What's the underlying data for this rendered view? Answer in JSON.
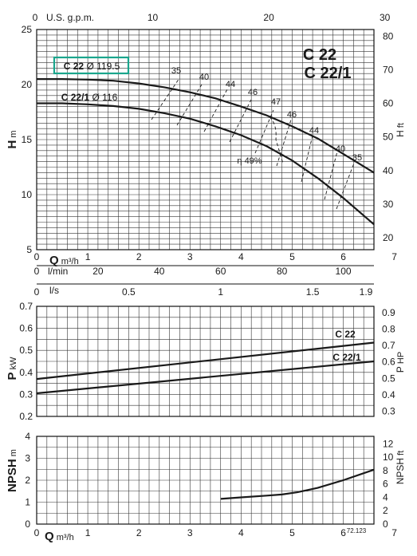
{
  "chart_data": [
    {
      "type": "line",
      "panel": "head",
      "model_title_1": "C 22",
      "model_title_2": "C 22/1",
      "ylabel": "H",
      "ylabel_unit": "m",
      "ylabel_right": "H",
      "ylabel_right_unit": "ft",
      "ylim": [
        5,
        25
      ],
      "xlim": [
        0,
        6.6
      ],
      "x_axis_label_q": "Q",
      "x_axis_label_q_unit": "m³/h",
      "x_axis_top_label": "U.S. g.p.m.",
      "x_axis_lmin_label": "l/min",
      "x_axis_ls_label": "l/s",
      "y_ticks": [
        "5",
        "10",
        "15",
        "20",
        "25"
      ],
      "y_ticks_right": [
        "20",
        "30",
        "40",
        "50",
        "60",
        "70",
        "80"
      ],
      "x_ticks_m3h": [
        "0",
        "1",
        "2",
        "3",
        "4",
        "5",
        "6",
        "7"
      ],
      "x_ticks_gpm": [
        "0",
        "10",
        "20",
        "30"
      ],
      "x_ticks_lmin": [
        "0",
        "20",
        "40",
        "60",
        "80",
        "100"
      ],
      "x_ticks_ls": [
        "0",
        "0.5",
        "1",
        "1.5",
        "1.9"
      ],
      "series": [
        {
          "name": "C 22",
          "diameter": "Ø 119.5",
          "x": [
            0,
            0.5,
            1,
            1.5,
            2,
            2.5,
            3,
            3.5,
            4,
            4.5,
            5,
            5.5,
            6,
            6.6
          ],
          "y": [
            20.5,
            20.5,
            20.45,
            20.35,
            20.1,
            19.75,
            19.3,
            18.75,
            18.0,
            17.2,
            16.2,
            15.1,
            13.7,
            12.0
          ]
        },
        {
          "name": "C 22/1",
          "diameter": "Ø 116",
          "x": [
            0,
            0.5,
            1,
            1.5,
            2,
            2.5,
            3,
            3.5,
            4,
            4.5,
            5,
            5.5,
            6,
            6.6
          ],
          "y": [
            18.3,
            18.3,
            18.2,
            18.05,
            17.8,
            17.4,
            16.9,
            16.2,
            15.4,
            14.4,
            13.1,
            11.5,
            9.7,
            7.3
          ]
        }
      ],
      "efficiency_labels": [
        "35",
        "40",
        "44",
        "46",
        "47",
        "46",
        "44",
        "40",
        "35"
      ],
      "efficiency_prefix": "η 49%"
    },
    {
      "type": "line",
      "panel": "power",
      "ylabel": "P",
      "ylabel_unit": "kW",
      "ylabel_right": "P",
      "ylabel_right_unit": "HP",
      "ylim": [
        0.2,
        0.7
      ],
      "xlim": [
        0,
        6.6
      ],
      "y_ticks": [
        "0.2",
        "0.3",
        "0.4",
        "0.5",
        "0.6",
        "0.7"
      ],
      "y_ticks_right": [
        "0.3",
        "0.4",
        "0.5",
        "0.6",
        "0.7",
        "0.8",
        "0.9"
      ],
      "series": [
        {
          "name": "C 22",
          "x": [
            0,
            6.6
          ],
          "y": [
            0.37,
            0.535
          ]
        },
        {
          "name": "C 22/1",
          "x": [
            0,
            6.6
          ],
          "y": [
            0.305,
            0.45
          ]
        }
      ]
    },
    {
      "type": "line",
      "panel": "npsh",
      "ylabel": "NPSH",
      "ylabel_unit": "m",
      "ylabel_right": "NPSH",
      "ylabel_right_unit": "ft",
      "ylim": [
        0,
        4
      ],
      "xlim": [
        0,
        6.6
      ],
      "x_axis_label_q": "Q",
      "x_axis_label_q_unit": "m³/h",
      "y_ticks": [
        "0",
        "1",
        "2",
        "3",
        "4"
      ],
      "y_ticks_right": [
        "0",
        "2",
        "4",
        "6",
        "8",
        "10",
        "12"
      ],
      "x_ticks_m3h": [
        "0",
        "1",
        "2",
        "3",
        "4",
        "5",
        "6",
        "7"
      ],
      "code": "72.123",
      "series": [
        {
          "name": "NPSH",
          "x": [
            3.6,
            4.0,
            4.5,
            4.8,
            5.1,
            5.5,
            6.0,
            6.6
          ],
          "y": [
            1.15,
            1.22,
            1.3,
            1.35,
            1.45,
            1.65,
            2.0,
            2.48
          ]
        }
      ]
    }
  ]
}
